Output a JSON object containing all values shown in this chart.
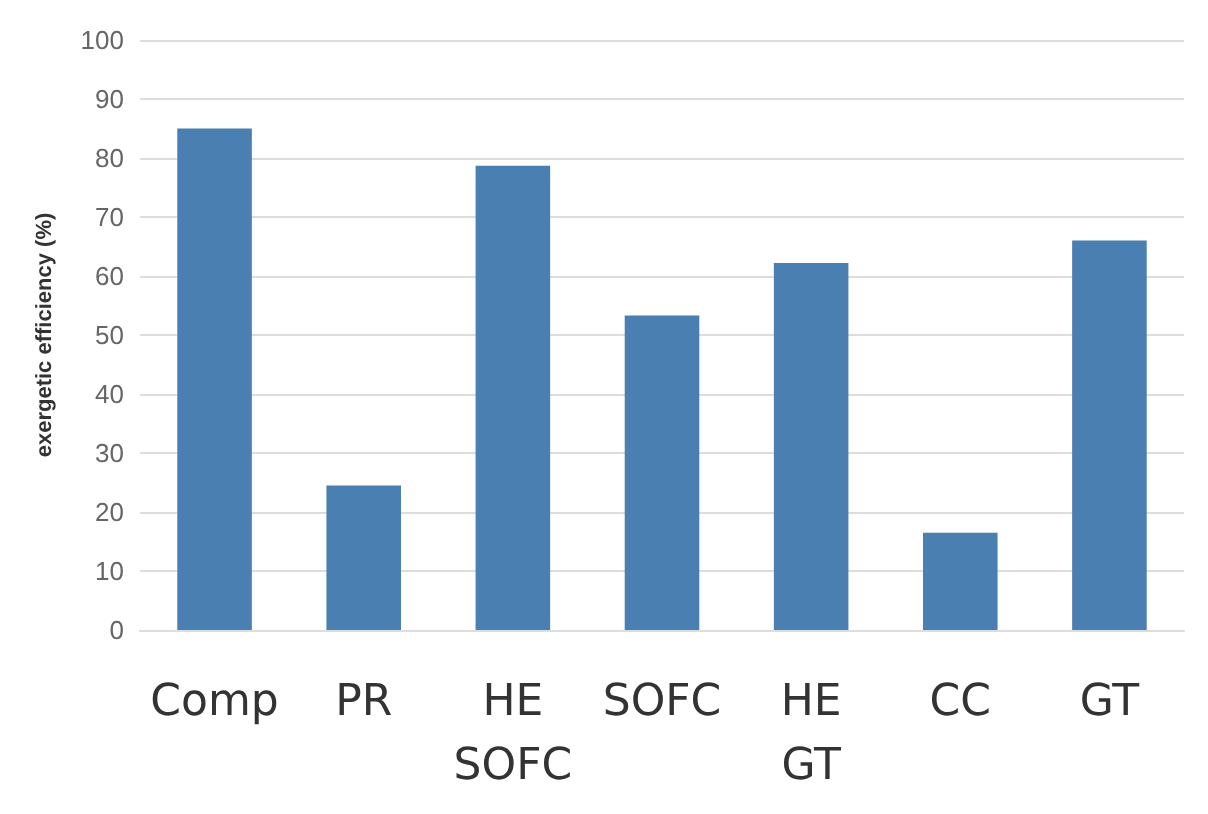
{
  "chart_data": {
    "type": "bar",
    "ylabel": "exergetic efficiency (%)",
    "categories": [
      "Comp",
      "PR",
      "HE\nSOFC",
      "SOFC",
      "HE\nGT",
      "CC",
      "GT"
    ],
    "values": [
      85,
      24.5,
      78.7,
      53.3,
      62.2,
      16.5,
      66
    ],
    "color": "#4a7fb2",
    "ylim": [
      0,
      100
    ],
    "yticks": [
      0,
      10,
      20,
      30,
      40,
      50,
      60,
      70,
      80,
      90,
      100
    ],
    "grid": "y"
  }
}
